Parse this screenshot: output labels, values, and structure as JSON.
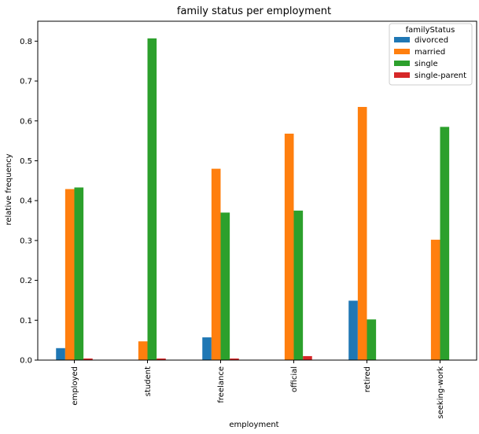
{
  "chart_data": {
    "type": "bar",
    "title": "family status per employment",
    "xlabel": "employment",
    "ylabel": "relative frequency",
    "categories": [
      "employed",
      "student",
      "freelance",
      "official",
      "retired",
      "seeking-work"
    ],
    "ylim": [
      0,
      0.85
    ],
    "yticks": [
      "0.0",
      "0.1",
      "0.2",
      "0.3",
      "0.4",
      "0.5",
      "0.6",
      "0.7",
      "0.8"
    ],
    "grid": false,
    "legend": {
      "title": "familyStatus",
      "placement": "top-right"
    },
    "series": [
      {
        "name": "divorced",
        "color": "#1f77b4",
        "values": [
          0.03,
          0.0,
          0.057,
          0.0,
          0.149,
          0.0
        ]
      },
      {
        "name": "married",
        "color": "#ff7f0e",
        "values": [
          0.429,
          0.047,
          0.48,
          0.568,
          0.635,
          0.302
        ]
      },
      {
        "name": "single",
        "color": "#2ca02c",
        "values": [
          0.433,
          0.807,
          0.37,
          0.375,
          0.102,
          0.585
        ]
      },
      {
        "name": "single-parent",
        "color": "#d62728",
        "values": [
          0.004,
          0.004,
          0.004,
          0.01,
          0.0,
          0.0
        ]
      }
    ]
  }
}
